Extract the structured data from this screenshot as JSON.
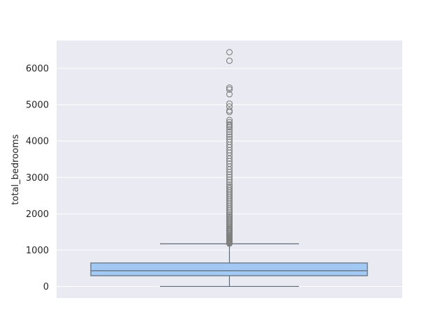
{
  "chart_data": {
    "type": "box",
    "title": "",
    "xlabel": "",
    "ylabel": "total_bedrooms",
    "ylim": [
      -300,
      6800
    ],
    "yticks": [
      0,
      1000,
      2000,
      3000,
      4000,
      5000,
      6000
    ],
    "ytick_labels": [
      "0",
      "1000",
      "2000",
      "3000",
      "4000",
      "5000",
      "6000"
    ],
    "grid": true,
    "colors": {
      "background": "#eaeaf2",
      "grid": "#ffffff",
      "box_fill": "#a1c9f4",
      "line": "#5f6b78",
      "outlier_edge": "#7f7f7f",
      "text": "#262626"
    },
    "box": {
      "min": 1,
      "q1": 296,
      "median": 435,
      "q3": 647,
      "whisker_high": 1173,
      "outliers": [
        1180,
        1190,
        1200,
        1215,
        1230,
        1250,
        1270,
        1290,
        1310,
        1330,
        1355,
        1380,
        1400,
        1430,
        1460,
        1490,
        1520,
        1550,
        1580,
        1610,
        1640,
        1680,
        1720,
        1760,
        1800,
        1840,
        1880,
        1920,
        1960,
        2000,
        2050,
        2100,
        2150,
        2200,
        2250,
        2300,
        2350,
        2400,
        2450,
        2500,
        2550,
        2600,
        2650,
        2700,
        2750,
        2800,
        2870,
        2940,
        3010,
        3080,
        3150,
        3220,
        3300,
        3380,
        3450,
        3520,
        3600,
        3680,
        3750,
        3830,
        3900,
        3980,
        4050,
        4120,
        4180,
        4250,
        4320,
        4380,
        4420,
        4460,
        4520,
        4580,
        4800,
        4840,
        4950,
        5030,
        5290,
        5420,
        5470,
        6210,
        6445
      ]
    }
  }
}
